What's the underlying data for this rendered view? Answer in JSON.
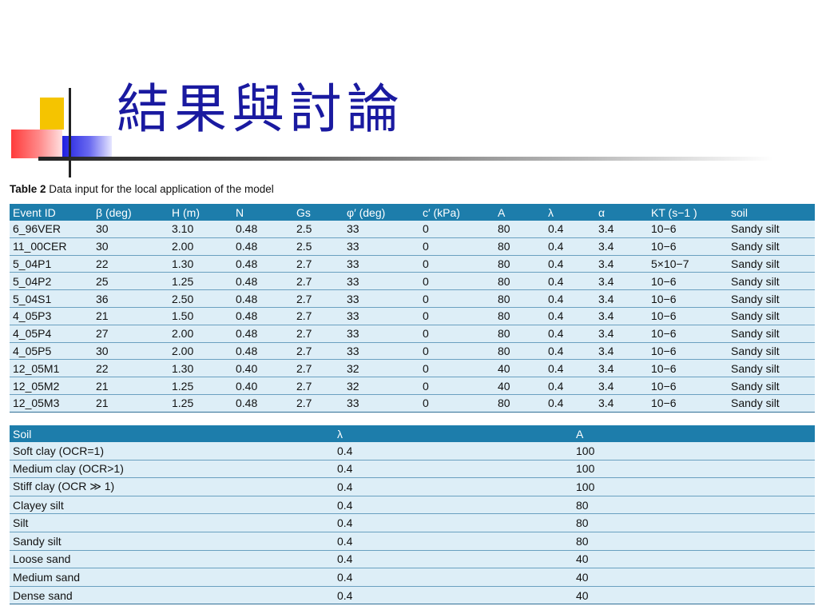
{
  "slide_title": "結果與討論",
  "caption": {
    "label": "Table 2",
    "text": "Data input for the local application of the model"
  },
  "table1": {
    "headers": [
      "Event ID",
      "β (deg)",
      "H (m)",
      "N",
      "Gs",
      "φ′ (deg)",
      "c′ (kPa)",
      "A",
      "λ",
      "α",
      "KT (s−1 )",
      "soil"
    ],
    "rows": [
      [
        "6_96VER",
        "30",
        "3.10",
        "0.48",
        "2.5",
        "33",
        "0",
        "80",
        "0.4",
        "3.4",
        "10−6",
        "Sandy silt"
      ],
      [
        "11_00CER",
        "30",
        "2.00",
        "0.48",
        "2.5",
        "33",
        "0",
        "80",
        "0.4",
        "3.4",
        "10−6",
        "Sandy silt"
      ],
      [
        "5_04P1",
        "22",
        "1.30",
        "0.48",
        "2.7",
        "33",
        "0",
        "80",
        "0.4",
        "3.4",
        "5×10−7",
        "Sandy silt"
      ],
      [
        "5_04P2",
        "25",
        "1.25",
        "0.48",
        "2.7",
        "33",
        "0",
        "80",
        "0.4",
        "3.4",
        "10−6",
        "Sandy silt"
      ],
      [
        "5_04S1",
        "36",
        "2.50",
        "0.48",
        "2.7",
        "33",
        "0",
        "80",
        "0.4",
        "3.4",
        "10−6",
        "Sandy silt"
      ],
      [
        "4_05P3",
        "21",
        "1.50",
        "0.48",
        "2.7",
        "33",
        "0",
        "80",
        "0.4",
        "3.4",
        "10−6",
        "Sandy silt"
      ],
      [
        "4_05P4",
        "27",
        "2.00",
        "0.48",
        "2.7",
        "33",
        "0",
        "80",
        "0.4",
        "3.4",
        "10−6",
        "Sandy silt"
      ],
      [
        "4_05P5",
        "30",
        "2.00",
        "0.48",
        "2.7",
        "33",
        "0",
        "80",
        "0.4",
        "3.4",
        "10−6",
        "Sandy silt"
      ],
      [
        "12_05M1",
        "22",
        "1.30",
        "0.40",
        "2.7",
        "32",
        "0",
        "40",
        "0.4",
        "3.4",
        "10−6",
        "Sandy silt"
      ],
      [
        "12_05M2",
        "21",
        "1.25",
        "0.40",
        "2.7",
        "32",
        "0",
        "40",
        "0.4",
        "3.4",
        "10−6",
        "Sandy silt"
      ],
      [
        "12_05M3",
        "21",
        "1.25",
        "0.48",
        "2.7",
        "33",
        "0",
        "80",
        "0.4",
        "3.4",
        "10−6",
        "Sandy silt"
      ]
    ]
  },
  "table2": {
    "headers": [
      "Soil",
      "λ",
      "A"
    ],
    "rows": [
      [
        "Soft clay (OCR=1)",
        "0.4",
        "100"
      ],
      [
        "Medium clay (OCR>1)",
        "0.4",
        "100"
      ],
      [
        "Stiff clay (OCR ≫ 1)",
        "0.4",
        "100"
      ],
      [
        "Clayey silt",
        "0.4",
        "80"
      ],
      [
        "Silt",
        "0.4",
        "80"
      ],
      [
        "Sandy silt",
        "0.4",
        "80"
      ],
      [
        "Loose sand",
        "0.4",
        "40"
      ],
      [
        "Medium sand",
        "0.4",
        "40"
      ],
      [
        "Dense sand",
        "0.4",
        "40"
      ]
    ]
  },
  "colors": {
    "title": "#1a1aa0",
    "header_bg": "#1d7dab",
    "row_bg": "#ddeef7"
  }
}
